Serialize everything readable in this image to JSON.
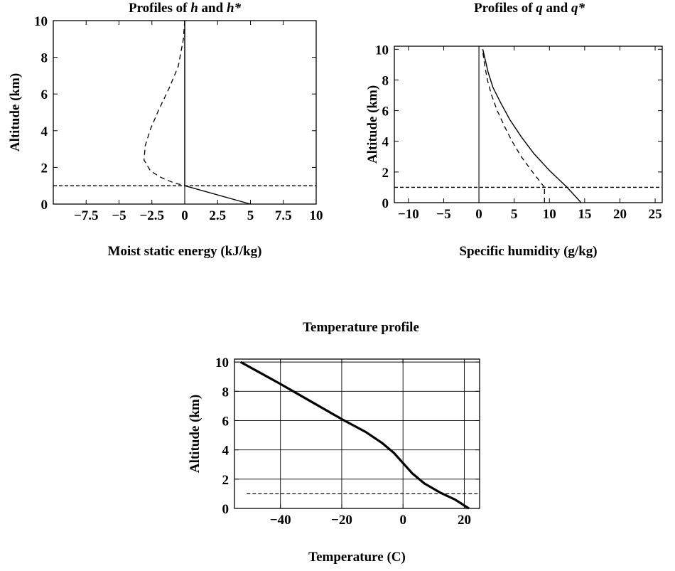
{
  "chart_data": [
    {
      "id": "h",
      "type": "line",
      "title_parts": [
        {
          "t": "Profiles of ",
          "i": false
        },
        {
          "t": "h",
          "i": true
        },
        {
          "t": " and ",
          "i": false
        },
        {
          "t": "h*",
          "i": true
        }
      ],
      "title": "Profiles of h and h*",
      "xlabel": "Moist static energy (kJ/kg)",
      "ylabel": "Altitude (km)",
      "xlim": [
        -10,
        10
      ],
      "ylim": [
        0,
        10
      ],
      "xticks": [
        -7.5,
        -5,
        -2.5,
        0,
        2.5,
        5,
        7.5,
        10
      ],
      "xtick_labels": [
        "−7.5",
        "−5",
        "−2.5",
        "0",
        "2.5",
        "5",
        "7.5",
        "10"
      ],
      "yticks": [
        0,
        2,
        4,
        6,
        8,
        10
      ],
      "ytick_labels": [
        "0",
        "2",
        "4",
        "6",
        "8",
        "10"
      ],
      "grid": false,
      "zero_line_x": 0,
      "series": [
        {
          "style": "solid",
          "x": [
            0,
            0,
            0,
            0,
            0,
            0
          ],
          "y": [
            10,
            8,
            6,
            4,
            2,
            1
          ]
        },
        {
          "style": "solid",
          "x": [
            0,
            5
          ],
          "y": [
            1,
            0
          ]
        },
        {
          "style": "dash",
          "x": [
            0,
            -0.1,
            -0.5,
            -1.2,
            -2.0,
            -2.6,
            -3.0,
            -3.1,
            -2.6,
            -1.8,
            -0.8,
            0
          ],
          "y": [
            10,
            9,
            7.5,
            6.3,
            5.1,
            4.1,
            3.2,
            2.4,
            1.8,
            1.45,
            1.15,
            1.0
          ]
        }
      ],
      "reference_lines": [
        {
          "style": "dash",
          "y": 1,
          "x": [
            -10,
            10
          ]
        }
      ]
    },
    {
      "id": "q",
      "type": "line",
      "title_parts": [
        {
          "t": "Profiles of ",
          "i": false
        },
        {
          "t": "q",
          "i": true
        },
        {
          "t": " and ",
          "i": false
        },
        {
          "t": "q*",
          "i": true
        }
      ],
      "title": "Profiles of q and q*",
      "xlabel": "Specific humidity (g/kg)",
      "ylabel": "Altitude (km)",
      "xlim": [
        -12,
        26
      ],
      "ylim": [
        0,
        10.2
      ],
      "xticks": [
        -10,
        -5,
        0,
        5,
        10,
        15,
        20,
        25
      ],
      "xtick_labels": [
        "−10",
        "−5",
        "0",
        "5",
        "10",
        "15",
        "20",
        "25"
      ],
      "yticks": [
        0,
        2,
        4,
        6,
        8,
        10
      ],
      "ytick_labels": [
        "0",
        "2",
        "4",
        "6",
        "8",
        "10"
      ],
      "grid": false,
      "zero_line_x": 0,
      "series": [
        {
          "style": "solid",
          "x": [
            14.5,
            12.5,
            10.0,
            7.8,
            6.0,
            4.4,
            3.1,
            2.0,
            1.3,
            0.9,
            0.55
          ],
          "y": [
            0,
            1,
            2.1,
            3.2,
            4.3,
            5.4,
            6.5,
            7.5,
            8.5,
            9.3,
            10
          ]
        },
        {
          "style": "dash",
          "x": [
            9.3,
            7.6,
            6.0,
            4.7,
            3.6,
            2.6,
            1.8,
            1.2,
            0.8,
            0.5
          ],
          "y": [
            1.0,
            2.0,
            3.0,
            4.0,
            5.0,
            6.0,
            7.0,
            8.0,
            9.0,
            10
          ]
        },
        {
          "style": "dash",
          "x": [
            9.3,
            9.3
          ],
          "y": [
            0,
            1
          ]
        }
      ],
      "reference_lines": [
        {
          "style": "dash",
          "y": 1,
          "x": [
            -12,
            26
          ]
        }
      ]
    },
    {
      "id": "t",
      "type": "line",
      "title_parts": [
        {
          "t": "Temperature profile",
          "i": false
        }
      ],
      "title": "Temperature profile",
      "xlabel": "Temperature (C)",
      "ylabel": "Altitude (km)",
      "xlim": [
        -55,
        25
      ],
      "ylim": [
        0,
        10.2
      ],
      "xticks": [
        -40,
        -20,
        0,
        20
      ],
      "xtick_labels": [
        "−40",
        "−20",
        "0",
        "20"
      ],
      "yticks": [
        0,
        2,
        4,
        6,
        8,
        10
      ],
      "ytick_labels": [
        "0",
        "2",
        "4",
        "6",
        "8",
        "10"
      ],
      "grid": true,
      "series": [
        {
          "style": "thick",
          "x": [
            21.5,
            17,
            12,
            7,
            3,
            0,
            -3,
            -7,
            -12,
            -20,
            -30,
            -40,
            -53
          ],
          "y": [
            0,
            0.6,
            1.1,
            1.7,
            2.4,
            3.1,
            3.8,
            4.5,
            5.2,
            6.1,
            7.3,
            8.5,
            10
          ]
        }
      ],
      "reference_lines": [
        {
          "style": "dash",
          "y": 1,
          "x": [
            -51,
            25
          ]
        }
      ]
    }
  ]
}
